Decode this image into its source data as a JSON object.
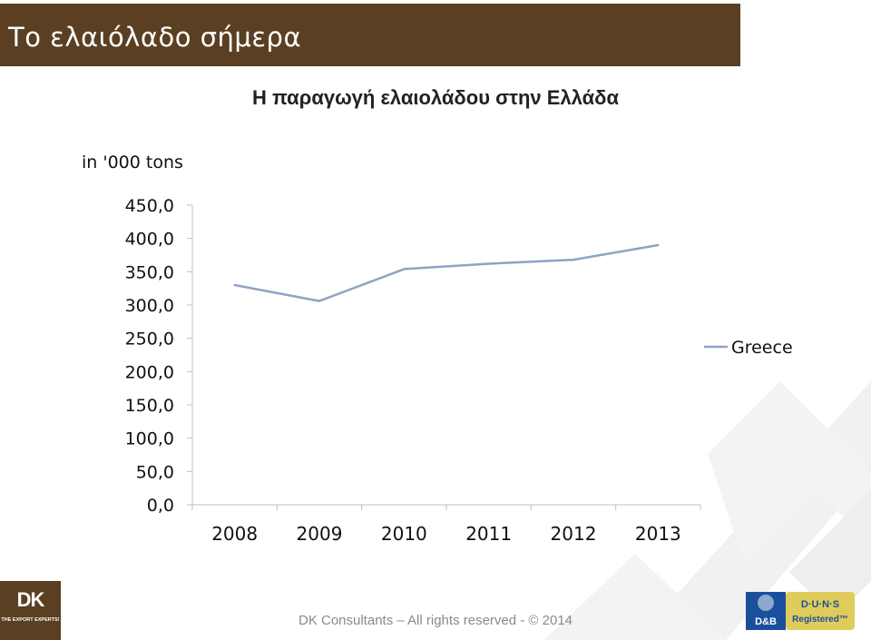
{
  "slide": {
    "title": "Το ελαιόλαδο σήμερα",
    "footer": "DK Consultants – All rights reserved - © 2014",
    "logo_left_mark": "DK",
    "logo_left_tagline": "THE EXPORT EXPERTS!",
    "logo_right_text_1": "D·U·N·S",
    "logo_right_text_2": "Registered™",
    "logo_right_brand": "D&B"
  },
  "chart_data": {
    "type": "line",
    "title": "Η παραγωγή ελαιολάδου στην Ελλάδα",
    "ylabel": "in '000 tons",
    "categories": [
      "2008",
      "2009",
      "2010",
      "2011",
      "2012",
      "2013"
    ],
    "series": [
      {
        "name": "Greece",
        "values": [
          330,
          306,
          354,
          362,
          368,
          390
        ],
        "color": "#8fa3c4"
      }
    ],
    "ylim": [
      0,
      450
    ],
    "ytick_labels": [
      "450,0",
      "400,0",
      "350,0",
      "300,0",
      "250,0",
      "200,0",
      "150,0",
      "100,0",
      "50,0",
      "0,0"
    ],
    "legend_position": "right",
    "grid": false
  }
}
